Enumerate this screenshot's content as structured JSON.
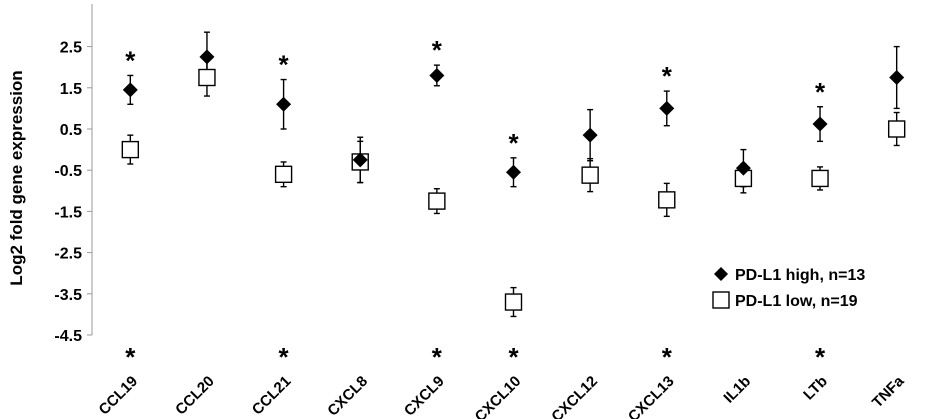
{
  "chart_data": {
    "type": "scatter",
    "ylabel": "Log2 fold gene expression",
    "ylim": [
      -4.5,
      3.0
    ],
    "yticks": [
      "2.5",
      "1.5",
      "0.5",
      "-0.5",
      "-1.5",
      "-2.5",
      "-3.5",
      "-4.5"
    ],
    "categories": [
      "CCL19",
      "CCL20",
      "CCL21",
      "CXCL8",
      "CXCL9",
      "CXCL10",
      "CXCL12",
      "CXCL13",
      "IL1b",
      "LTb",
      "TNFa"
    ],
    "grid": false,
    "legend_position": "bottom-right",
    "series": [
      {
        "name": "PD-L1 high, n=13",
        "marker": "diamond-filled",
        "values": [
          1.45,
          2.25,
          1.1,
          -0.25,
          1.8,
          -0.55,
          0.35,
          1.0,
          -0.45,
          0.62,
          1.75
        ],
        "error": [
          0.35,
          0.6,
          0.6,
          0.55,
          0.25,
          0.35,
          0.62,
          0.42,
          0.45,
          0.42,
          0.75
        ]
      },
      {
        "name": "PD-L1 low, n=19",
        "marker": "square-open",
        "values": [
          0.0,
          1.75,
          -0.6,
          -0.3,
          -1.25,
          -3.7,
          -0.62,
          -1.22,
          -0.7,
          -0.7,
          0.5
        ],
        "error": [
          0.35,
          0.45,
          0.3,
          0.5,
          0.3,
          0.35,
          0.4,
          0.4,
          0.35,
          0.28,
          0.4
        ]
      }
    ],
    "annotations": {
      "symbol": "*",
      "top_star_categories": [
        "CCL19",
        "CCL21",
        "CXCL9",
        "CXCL10",
        "CXCL13",
        "LTb"
      ],
      "bottom_star_categories": [
        "CCL19",
        "CCL21",
        "CXCL9",
        "CXCL10",
        "CXCL13",
        "LTb"
      ]
    }
  }
}
